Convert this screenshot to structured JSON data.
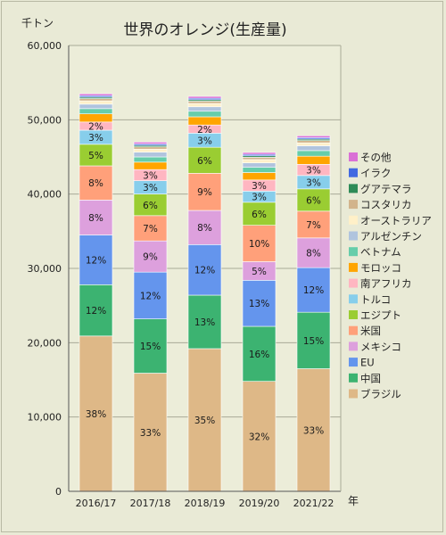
{
  "chart_data": {
    "type": "bar",
    "stacked": true,
    "title": "世界のオレンジ(生産量)",
    "y_unit_label": "千トン",
    "x_unit_label": "年",
    "ylim": [
      0,
      60000
    ],
    "yticks": [
      "0",
      "10,000",
      "20,000",
      "30,000",
      "40,000",
      "50,000",
      "60,000"
    ],
    "grid": "horizontal",
    "legend": "right",
    "categories": [
      "2016/17",
      "2017/18",
      "2018/19",
      "2019/20",
      "2021/22"
    ],
    "series": [
      {
        "name": "ブラジル",
        "color": "#deb887",
        "values": [
          20900,
          15900,
          19200,
          14800,
          16500
        ],
        "labels": [
          "38%",
          "33%",
          "35%",
          "32%",
          "33%"
        ]
      },
      {
        "name": "中国",
        "color": "#3cb371",
        "values": [
          6900,
          7300,
          7200,
          7400,
          7600
        ],
        "labels": [
          "12%",
          "15%",
          "13%",
          "16%",
          "15%"
        ]
      },
      {
        "name": "EU",
        "color": "#6495ed",
        "values": [
          6700,
          6300,
          6800,
          6200,
          6000
        ],
        "labels": [
          "12%",
          "12%",
          "12%",
          "13%",
          "12%"
        ]
      },
      {
        "name": "メキシコ",
        "color": "#dda0dd",
        "values": [
          4700,
          4200,
          4600,
          2500,
          4000
        ],
        "labels": [
          "8%",
          "9%",
          "8%",
          "5%",
          "8%"
        ]
      },
      {
        "name": "米国",
        "color": "#ffa07a",
        "values": [
          4600,
          3400,
          5000,
          4900,
          3600
        ],
        "labels": [
          "8%",
          "7%",
          "9%",
          "10%",
          "7%"
        ]
      },
      {
        "name": "エジプト",
        "color": "#9acd32",
        "values": [
          2900,
          2900,
          3500,
          3100,
          3000
        ],
        "labels": [
          "5%",
          "6%",
          "6%",
          "6%",
          "6%"
        ]
      },
      {
        "name": "トルコ",
        "color": "#87ceeb",
        "values": [
          1900,
          1800,
          1900,
          1500,
          1800
        ],
        "labels": [
          "3%",
          "3%",
          "3%",
          "3%",
          "3%"
        ]
      },
      {
        "name": "南アフリカ",
        "color": "#ffb6c1",
        "values": [
          1100,
          1500,
          1100,
          1500,
          1500
        ],
        "labels": [
          "2%",
          "3%",
          "2%",
          "3%",
          "3%"
        ]
      },
      {
        "name": "モロッコ",
        "color": "#ffa500",
        "values": [
          1100,
          1000,
          1100,
          1000,
          1100
        ],
        "labels": [
          "",
          "",
          "",
          "",
          ""
        ]
      },
      {
        "name": "ベトナム",
        "color": "#66cdaa",
        "values": [
          700,
          700,
          750,
          700,
          750
        ],
        "labels": [
          "",
          "",
          "",
          "",
          ""
        ]
      },
      {
        "name": "アルゼンチン",
        "color": "#b0c4de",
        "values": [
          600,
          650,
          600,
          600,
          650
        ],
        "labels": [
          "",
          "",
          "",
          "",
          ""
        ]
      },
      {
        "name": "オーストラリア",
        "color": "#fff0c8",
        "values": [
          450,
          400,
          450,
          450,
          400
        ],
        "labels": [
          "",
          "",
          "",
          "",
          ""
        ]
      },
      {
        "name": "コスタリカ",
        "color": "#d2b48c",
        "values": [
          300,
          300,
          300,
          300,
          300
        ],
        "labels": [
          "",
          "",
          "",
          "",
          ""
        ]
      },
      {
        "name": "グアテマラ",
        "color": "#2e8b57",
        "values": [
          200,
          200,
          200,
          200,
          200
        ],
        "labels": [
          "",
          "",
          "",
          "",
          ""
        ]
      },
      {
        "name": "イラク",
        "color": "#4169e1",
        "values": [
          200,
          200,
          200,
          200,
          200
        ],
        "labels": [
          "",
          "",
          "",
          "",
          ""
        ]
      },
      {
        "name": "その他",
        "color": "#da70d6",
        "values": [
          250,
          250,
          250,
          250,
          250
        ],
        "labels": [
          "",
          "",
          "",
          "",
          ""
        ]
      }
    ]
  }
}
